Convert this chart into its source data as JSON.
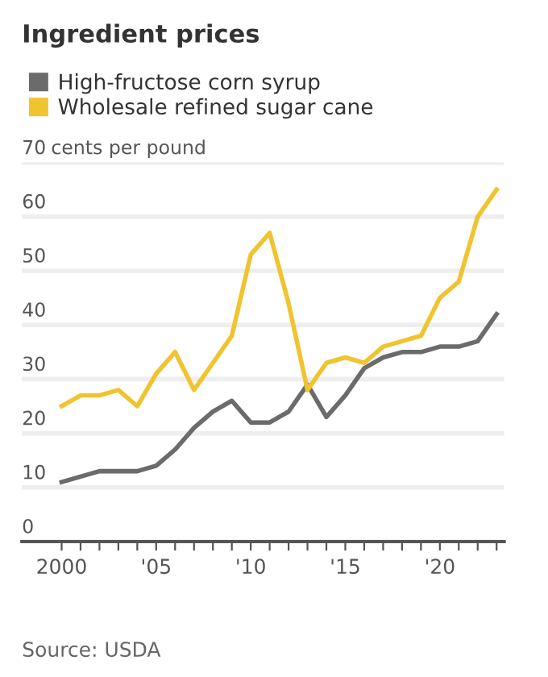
{
  "chart_data": {
    "type": "line",
    "title": "Ingredient prices",
    "ylabel": "cents per pound",
    "x": [
      2000,
      2001,
      2002,
      2003,
      2004,
      2005,
      2006,
      2007,
      2008,
      2009,
      2010,
      2011,
      2012,
      2013,
      2014,
      2015,
      2016,
      2017,
      2018,
      2019,
      2020,
      2021,
      2022,
      2023
    ],
    "series": [
      {
        "name": "High-fructose corn syrup",
        "color": "#6b6b6b",
        "values": [
          11,
          12,
          13,
          13,
          13,
          14,
          17,
          21,
          24,
          26,
          22,
          22,
          24,
          29,
          23,
          27,
          32,
          34,
          35,
          35,
          36,
          36,
          37,
          42
        ]
      },
      {
        "name": "Wholesale refined sugar cane",
        "color": "#f0c430",
        "values": [
          25,
          27,
          27,
          28,
          25,
          31,
          35,
          28,
          33,
          38,
          53,
          57,
          44,
          28,
          33,
          34,
          33,
          36,
          37,
          38,
          45,
          48,
          60,
          65
        ]
      }
    ],
    "xlim": [
      1997.9,
      2023.4
    ],
    "xticks": [
      2000,
      {
        "value": 2001,
        "label": null
      },
      {
        "value": 2002,
        "label": null
      },
      {
        "value": 2003,
        "label": null
      },
      {
        "value": 2004,
        "label": null
      },
      {
        "value": 2005,
        "label": "'05"
      },
      {
        "value": 2006,
        "label": null
      },
      {
        "value": 2007,
        "label": null
      },
      {
        "value": 2008,
        "label": null
      },
      {
        "value": 2009,
        "label": null
      },
      {
        "value": 2010,
        "label": "'10"
      },
      {
        "value": 2011,
        "label": null
      },
      {
        "value": 2012,
        "label": null
      },
      {
        "value": 2013,
        "label": null
      },
      {
        "value": 2014,
        "label": null
      },
      {
        "value": 2015,
        "label": "'15"
      },
      {
        "value": 2016,
        "label": null
      },
      {
        "value": 2017,
        "label": null
      },
      {
        "value": 2018,
        "label": null
      },
      {
        "value": 2019,
        "label": null
      },
      {
        "value": 2020,
        "label": "'20"
      },
      {
        "value": 2021,
        "label": null
      },
      {
        "value": 2022,
        "label": null
      },
      {
        "value": 2023,
        "label": null
      }
    ],
    "ylim": [
      0,
      70
    ],
    "yticks": [
      0,
      10,
      20,
      30,
      40,
      50,
      60,
      70
    ],
    "grid": "y",
    "legend": "top left",
    "marker": "none",
    "line_style": "solid",
    "annotations": [
      "Source: USDA"
    ]
  }
}
